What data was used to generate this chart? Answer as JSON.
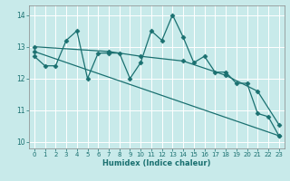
{
  "xlabel": "Humidex (Indice chaleur)",
  "xlim": [
    -0.5,
    23.5
  ],
  "ylim": [
    9.8,
    14.3
  ],
  "xticks": [
    0,
    1,
    2,
    3,
    4,
    5,
    6,
    7,
    8,
    9,
    10,
    11,
    12,
    13,
    14,
    15,
    16,
    17,
    18,
    19,
    20,
    21,
    22,
    23
  ],
  "yticks": [
    10,
    11,
    12,
    13,
    14
  ],
  "bg_color": "#c8eaea",
  "line_color": "#1a7070",
  "grid_color": "#b0d8d8",
  "series": [
    {
      "x": [
        0,
        1,
        2,
        3,
        4,
        5,
        6,
        7,
        8,
        9,
        10,
        11,
        12,
        13,
        14,
        15,
        16,
        17,
        18,
        19,
        20,
        21,
        22,
        23
      ],
      "y": [
        12.7,
        12.4,
        12.4,
        13.2,
        13.5,
        12.0,
        12.8,
        12.8,
        12.8,
        12.0,
        12.5,
        13.5,
        13.2,
        14.0,
        13.3,
        12.5,
        12.7,
        12.2,
        12.2,
        11.85,
        11.85,
        10.9,
        10.8,
        10.2
      ]
    },
    {
      "x": [
        0,
        23
      ],
      "y": [
        12.85,
        10.2
      ]
    },
    {
      "x": [
        0,
        7,
        10,
        14,
        18,
        21,
        23
      ],
      "y": [
        13.0,
        12.85,
        12.7,
        12.55,
        12.1,
        11.6,
        10.55
      ]
    }
  ]
}
